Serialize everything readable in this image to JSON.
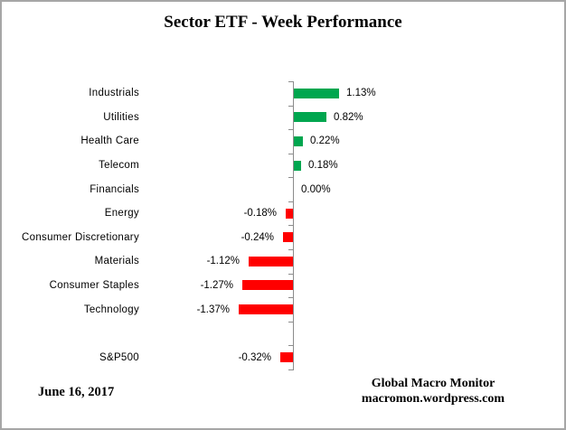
{
  "title": "Sector ETF - Week Performance",
  "footer": {
    "date": "June 16, 2017",
    "credit_line1": "Global Macro Monitor",
    "credit_line2": "macromon.wordpress.com"
  },
  "colors": {
    "positive_bar": "#00A64F",
    "negative_bar": "#FF0000",
    "axis": "#8C8C8C",
    "frame_border": "#A6A6A6",
    "text": "#000000"
  },
  "chart_data": {
    "type": "bar",
    "orientation": "horizontal",
    "title": "Sector ETF - Week Performance",
    "categories": [
      "Industrials",
      "Utilities",
      "Health Care",
      "Telecom",
      "Financials",
      "Energy",
      "Consumer Discretionary",
      "Materials",
      "Consumer Staples",
      "Technology",
      "",
      "S&P500"
    ],
    "values": [
      1.13,
      0.82,
      0.22,
      0.18,
      0.0,
      -0.18,
      -0.24,
      -1.12,
      -1.27,
      -1.37,
      null,
      -0.32
    ],
    "value_labels": [
      "1.13%",
      "0.82%",
      "0.22%",
      "0.18%",
      "0.00%",
      "-0.18%",
      "-0.24%",
      "-1.12%",
      "-1.27%",
      "-1.37%",
      "",
      "-0.32%"
    ],
    "xlabel": "",
    "ylabel": "",
    "xlim": [
      -1.5,
      1.3
    ],
    "grid": false,
    "legend": false,
    "zero_axis": true
  }
}
